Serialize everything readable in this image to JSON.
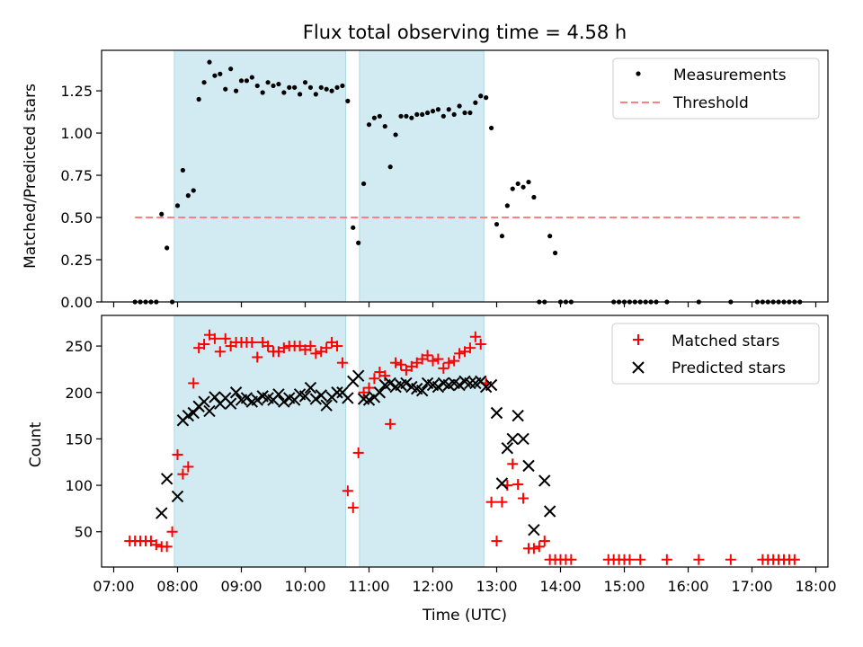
{
  "chart_data": {
    "title": "Flux total observing time = 4.58 h",
    "xlabel": "Time (UTC)",
    "x_unit": "hours UTC",
    "xlim": [
      "07:00",
      "18:00"
    ],
    "xticks": [
      "07:00",
      "08:00",
      "09:00",
      "10:00",
      "11:00",
      "12:00",
      "13:00",
      "14:00",
      "15:00",
      "16:00",
      "17:00",
      "18:00"
    ],
    "shaded_intervals": [
      [
        "07:57",
        "10:38"
      ],
      [
        "10:51",
        "12:48"
      ]
    ],
    "colors": {
      "shade": "#add8e6",
      "matched": "#ff0000",
      "predicted": "#000000",
      "threshold": "#ff7f7f",
      "measure": "#000000"
    },
    "panels": [
      {
        "type": "scatter",
        "ylabel": "Matched/Predicted stars",
        "ylim": [
          0,
          1.49
        ],
        "yticks": [
          "0.00",
          "0.25",
          "0.50",
          "0.75",
          "1.00",
          "1.25"
        ],
        "legend_position": "top-right",
        "threshold": {
          "name": "Threshold",
          "y": 0.5,
          "x_range": [
            "07:20",
            "17:45"
          ]
        },
        "series": [
          {
            "name": "Measurements",
            "x": [
              "07:20",
              "07:25",
              "07:30",
              "07:35",
              "07:40",
              "07:45",
              "07:50",
              "07:55",
              "08:00",
              "08:05",
              "08:10",
              "08:15",
              "08:20",
              "08:25",
              "08:30",
              "08:35",
              "08:40",
              "08:45",
              "08:50",
              "08:55",
              "09:00",
              "09:05",
              "09:10",
              "09:15",
              "09:20",
              "09:25",
              "09:30",
              "09:35",
              "09:40",
              "09:45",
              "09:50",
              "09:55",
              "10:00",
              "10:05",
              "10:10",
              "10:15",
              "10:20",
              "10:25",
              "10:30",
              "10:35",
              "10:40",
              "10:45",
              "10:50",
              "10:55",
              "11:00",
              "11:05",
              "11:10",
              "11:15",
              "11:20",
              "11:25",
              "11:30",
              "11:35",
              "11:40",
              "11:45",
              "11:50",
              "11:55",
              "12:00",
              "12:05",
              "12:10",
              "12:15",
              "12:20",
              "12:25",
              "12:30",
              "12:35",
              "12:40",
              "12:45",
              "12:50",
              "12:55",
              "13:00",
              "13:05",
              "13:10",
              "13:15",
              "13:20",
              "13:25",
              "13:30",
              "13:35",
              "13:40",
              "13:45",
              "13:50",
              "13:55",
              "14:00",
              "14:05",
              "14:10",
              "14:50",
              "14:55",
              "15:00",
              "15:05",
              "15:10",
              "15:15",
              "15:20",
              "15:25",
              "15:30",
              "15:40",
              "16:10",
              "16:40",
              "17:05",
              "17:10",
              "17:15",
              "17:20",
              "17:25",
              "17:30",
              "17:35",
              "17:40",
              "17:45"
            ],
            "y": [
              0,
              0,
              0,
              0,
              0,
              0.52,
              0.32,
              0,
              0.57,
              0.78,
              0.63,
              0.66,
              1.2,
              1.3,
              1.42,
              1.34,
              1.35,
              1.26,
              1.38,
              1.25,
              1.31,
              1.31,
              1.33,
              1.28,
              1.24,
              1.3,
              1.28,
              1.29,
              1.24,
              1.27,
              1.27,
              1.23,
              1.3,
              1.27,
              1.23,
              1.27,
              1.26,
              1.25,
              1.27,
              1.28,
              1.19,
              0.44,
              0.35,
              0.7,
              1.05,
              1.09,
              1.1,
              1.04,
              0.8,
              0.99,
              1.1,
              1.1,
              1.09,
              1.11,
              1.11,
              1.12,
              1.13,
              1.14,
              1.1,
              1.14,
              1.11,
              1.16,
              1.12,
              1.12,
              1.18,
              1.22,
              1.21,
              1.03,
              0.46,
              0.39,
              0.57,
              0.67,
              0.7,
              0.68,
              0.71,
              0.62,
              0.0,
              0.0,
              0.39,
              0.29,
              0,
              0,
              0,
              0,
              0,
              0,
              0,
              0,
              0,
              0,
              0,
              0,
              0,
              0,
              0,
              0,
              0,
              0,
              0,
              0,
              0,
              0,
              0,
              0
            ]
          }
        ]
      },
      {
        "type": "scatter",
        "ylabel": "Count",
        "ylim": [
          12,
          283
        ],
        "yticks": [
          "50",
          "100",
          "150",
          "200",
          "250"
        ],
        "legend_position": "top-right",
        "series": [
          {
            "name": "Matched stars",
            "marker": "+",
            "x": [
              "07:15",
              "07:20",
              "07:25",
              "07:30",
              "07:35",
              "07:40",
              "07:45",
              "07:50",
              "07:55",
              "08:00",
              "08:05",
              "08:10",
              "08:15",
              "08:20",
              "08:25",
              "08:30",
              "08:35",
              "08:40",
              "08:45",
              "08:50",
              "08:55",
              "09:00",
              "09:05",
              "09:10",
              "09:15",
              "09:20",
              "09:25",
              "09:30",
              "09:35",
              "09:40",
              "09:45",
              "09:50",
              "09:55",
              "10:00",
              "10:05",
              "10:10",
              "10:15",
              "10:20",
              "10:25",
              "10:30",
              "10:35",
              "10:40",
              "10:45",
              "10:50",
              "10:55",
              "11:00",
              "11:05",
              "11:10",
              "11:15",
              "11:20",
              "11:25",
              "11:30",
              "11:35",
              "11:40",
              "11:45",
              "11:50",
              "11:55",
              "12:00",
              "12:05",
              "12:10",
              "12:15",
              "12:20",
              "12:25",
              "12:30",
              "12:35",
              "12:40",
              "12:45",
              "12:50",
              "12:55",
              "13:00",
              "13:05",
              "13:10",
              "13:15",
              "13:20",
              "13:25",
              "13:30",
              "13:35",
              "13:40",
              "13:45",
              "13:50",
              "13:55",
              "14:00",
              "14:05",
              "14:10",
              "14:45",
              "14:50",
              "14:55",
              "15:00",
              "15:05",
              "15:15",
              "15:40",
              "16:10",
              "16:40",
              "17:10",
              "17:15",
              "17:20",
              "17:25",
              "17:30",
              "17:35",
              "17:40"
            ],
            "y": [
              40,
              40,
              40,
              40,
              40,
              36,
              34,
              34,
              50,
              133,
              112,
              120,
              210,
              248,
              252,
              262,
              258,
              244,
              258,
              250,
              254,
              254,
              254,
              254,
              238,
              254,
              250,
              244,
              244,
              248,
              250,
              250,
              250,
              246,
              250,
              242,
              244,
              248,
              254,
              250,
              232,
              94,
              76,
              135,
              200,
              205,
              215,
              222,
              218,
              166,
              232,
              230,
              224,
              228,
              232,
              236,
              240,
              234,
              236,
              226,
              232,
              234,
              242,
              244,
              248,
              260,
              252,
              210,
              82,
              40,
              82,
              100,
              123,
              101,
              86,
              32,
              32,
              34,
              40,
              20,
              20,
              20,
              20,
              20,
              20,
              20,
              20,
              20,
              20,
              20,
              20,
              20,
              20,
              20,
              20,
              20,
              20,
              20,
              20,
              20
            ]
          },
          {
            "name": "Predicted stars",
            "marker": "x",
            "x": [
              "07:45",
              "07:50",
              "08:00",
              "08:05",
              "08:10",
              "08:15",
              "08:20",
              "08:25",
              "08:30",
              "08:35",
              "08:40",
              "08:45",
              "08:50",
              "08:55",
              "09:00",
              "09:05",
              "09:10",
              "09:15",
              "09:20",
              "09:25",
              "09:30",
              "09:35",
              "09:40",
              "09:45",
              "09:50",
              "09:55",
              "10:00",
              "10:05",
              "10:10",
              "10:15",
              "10:20",
              "10:25",
              "10:30",
              "10:35",
              "10:40",
              "10:45",
              "10:50",
              "10:55",
              "11:00",
              "11:05",
              "11:10",
              "11:15",
              "11:20",
              "11:25",
              "11:30",
              "11:35",
              "11:40",
              "11:45",
              "11:50",
              "11:55",
              "12:00",
              "12:05",
              "12:10",
              "12:15",
              "12:20",
              "12:25",
              "12:30",
              "12:35",
              "12:40",
              "12:45",
              "12:50",
              "12:55",
              "13:00",
              "13:05",
              "13:10",
              "13:15",
              "13:20",
              "13:25",
              "13:30",
              "13:35",
              "13:45",
              "13:50"
            ],
            "y": [
              70,
              107,
              88,
              170,
              175,
              178,
              185,
              190,
              180,
              195,
              188,
              194,
              188,
              200,
              192,
              194,
              190,
              192,
              196,
              194,
              192,
              198,
              190,
              194,
              192,
              198,
              196,
              205,
              193,
              197,
              186,
              195,
              200,
              200,
              194,
              212,
              218,
              193,
              192,
              195,
              200,
              208,
              210,
              206,
              208,
              210,
              206,
              204,
              202,
              210,
              208,
              206,
              210,
              208,
              210,
              208,
              212,
              210,
              210,
              212,
              206,
              208,
              178,
              102,
              140,
              150,
              175,
              150,
              121,
              52,
              105,
              72
            ]
          }
        ]
      }
    ]
  }
}
